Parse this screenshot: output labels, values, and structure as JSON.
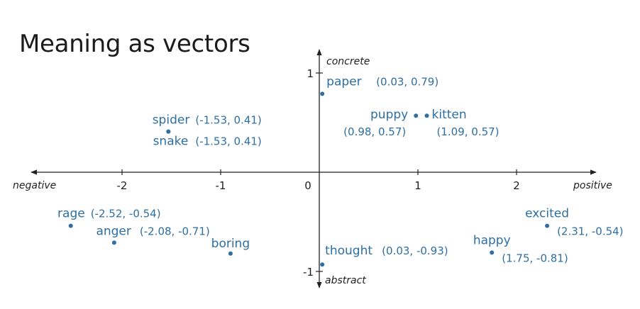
{
  "title": "Meaning as vectors",
  "axes": {
    "x_negative_label": "negative",
    "x_positive_label": "positive",
    "y_positive_label": "concrete",
    "y_negative_label": "abstract",
    "x_ticks": [
      {
        "value": -2,
        "label": "-2"
      },
      {
        "value": -1,
        "label": "-1"
      },
      {
        "value": 0,
        "label": "0"
      },
      {
        "value": 1,
        "label": "1"
      },
      {
        "value": 2,
        "label": "2"
      }
    ],
    "y_ticks": [
      {
        "value": 1,
        "label": "1"
      },
      {
        "value": -1,
        "label": "-1"
      }
    ]
  },
  "chart_data": {
    "type": "scatter",
    "title": "Meaning as vectors",
    "xlabel": "",
    "ylabel": "",
    "xlim": [
      -3,
      3
    ],
    "ylim": [
      -1.1,
      1.1
    ],
    "points": [
      {
        "word": "paper",
        "coord": "(0.03, 0.79)",
        "x": 0.03,
        "y": 0.79
      },
      {
        "word": "puppy",
        "coord": "(0.98, 0.57)",
        "x": 0.98,
        "y": 0.57
      },
      {
        "word": "kitten",
        "coord": "(1.09, 0.57)",
        "x": 1.09,
        "y": 0.57
      },
      {
        "word": "spider",
        "coord": "(-1.53, 0.41)",
        "x": -1.53,
        "y": 0.41
      },
      {
        "word": "snake",
        "coord": "(-1.53, 0.41)",
        "x": -1.53,
        "y": 0.41
      },
      {
        "word": "rage",
        "coord": "(-2.52, -0.54)",
        "x": -2.52,
        "y": -0.54
      },
      {
        "word": "anger",
        "coord": "(-2.08, -0.71)",
        "x": -2.08,
        "y": -0.71
      },
      {
        "word": "boring",
        "coord": "",
        "x": -0.9,
        "y": -0.82
      },
      {
        "word": "thought",
        "coord": "(0.03, -0.93)",
        "x": 0.03,
        "y": -0.93
      },
      {
        "word": "excited",
        "coord": "(2.31, -0.54)",
        "x": 2.31,
        "y": -0.54
      },
      {
        "word": "happy",
        "coord": "(1.75, -0.81)",
        "x": 1.75,
        "y": -0.81
      }
    ]
  }
}
